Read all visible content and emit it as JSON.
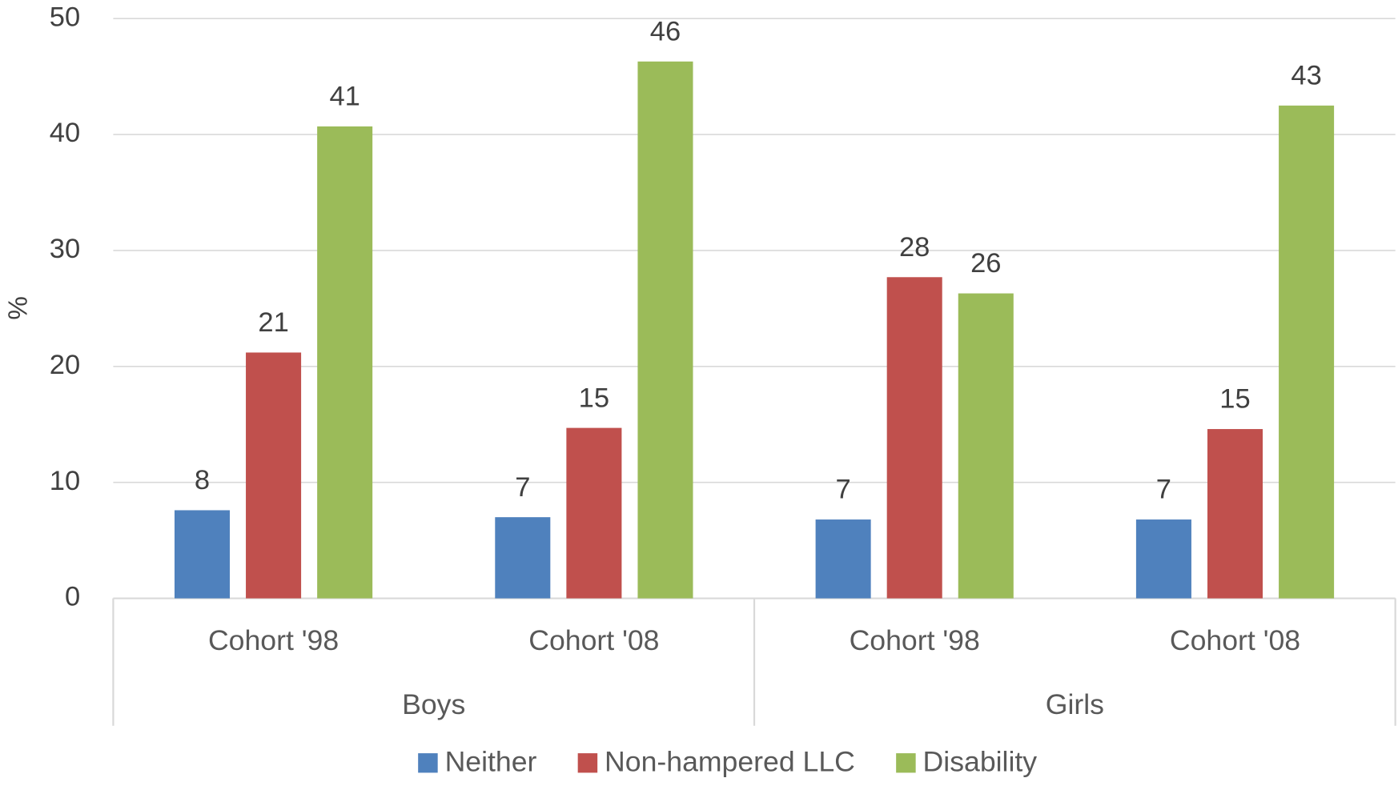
{
  "chart_data": {
    "type": "bar",
    "y_label": "%",
    "categories": [
      "Cohort '98",
      "Cohort '08",
      "Cohort '98",
      "Cohort '08"
    ],
    "groups": [
      "Boys",
      "Girls"
    ],
    "series": [
      {
        "name": "Neither",
        "color": "#4f81bd",
        "values": [
          7.6,
          7.0,
          6.8,
          6.8
        ],
        "value_labels": [
          "8",
          "7",
          "7",
          "7"
        ]
      },
      {
        "name": "Non-hampered LLC",
        "color": "#c0504d",
        "values": [
          21.2,
          14.7,
          27.7,
          14.6
        ],
        "value_labels": [
          "21",
          "15",
          "28",
          "15"
        ]
      },
      {
        "name": "Disability",
        "color": "#9bbb59",
        "values": [
          40.7,
          46.3,
          26.3,
          42.5
        ],
        "value_labels": [
          "41",
          "46",
          "26",
          "43"
        ]
      }
    ],
    "ylim": [
      0,
      50
    ],
    "yticks": [
      0,
      10,
      20,
      30,
      40,
      50
    ],
    "grid": true,
    "legend": "bottom"
  }
}
